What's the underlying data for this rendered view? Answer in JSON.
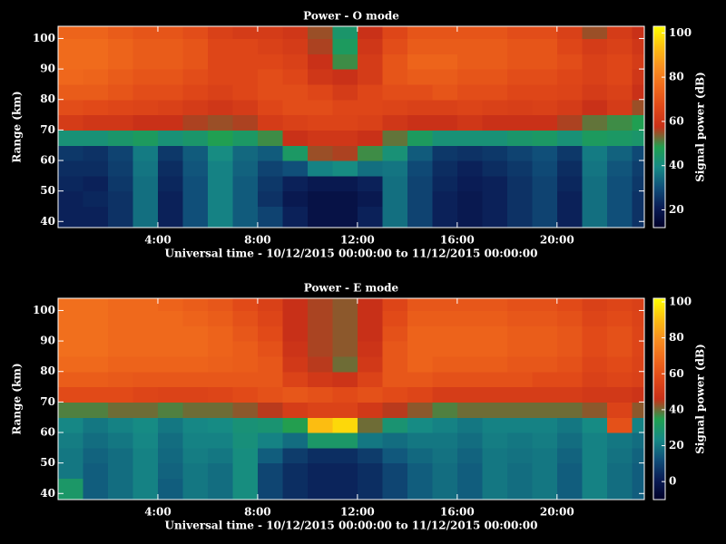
{
  "chart_data": [
    {
      "type": "heatmap",
      "title": "Power - O mode",
      "xlabel": "Universal time - 10/12/2015 00:00:00 to 11/12/2015 00:00:00",
      "ylabel": "Range (km)",
      "colorbar_label": "Signal power (dB)",
      "xlim": [
        0,
        23.5
      ],
      "ylim": [
        38,
        104
      ],
      "zlim": [
        12,
        103
      ],
      "xticks": [
        {
          "value": 4,
          "label": "4:00"
        },
        {
          "value": 8,
          "label": "8:00"
        },
        {
          "value": 12,
          "label": "12:00"
        },
        {
          "value": 16,
          "label": "16:00"
        },
        {
          "value": 20,
          "label": "20:00"
        }
      ],
      "yticks": [
        40,
        50,
        60,
        70,
        80,
        90,
        100
      ],
      "zticks": [
        20,
        40,
        60,
        80,
        100
      ],
      "colormap": [
        "#000028",
        "#0a1c55",
        "#10507a",
        "#168a86",
        "#20a050",
        "#c83018",
        "#e04818",
        "#f06a1c",
        "#f89020",
        "#fcc010",
        "#ffff00"
      ],
      "xbins": [
        0,
        1,
        2,
        3,
        4,
        5,
        6,
        7,
        8,
        9,
        10,
        11,
        12,
        13,
        14,
        15,
        16,
        17,
        18,
        19,
        20,
        21,
        22,
        23,
        23.5
      ],
      "ybins": [
        38,
        45,
        50,
        55,
        60,
        65,
        70,
        75,
        80,
        85,
        90,
        95,
        100,
        104
      ],
      "z": [
        [
          22,
          22,
          25,
          35,
          22,
          30,
          38,
          32,
          28,
          22,
          18,
          18,
          22,
          35,
          28,
          22,
          20,
          22,
          25,
          28,
          22,
          35,
          30,
          25
        ],
        [
          22,
          23,
          25,
          35,
          22,
          30,
          38,
          32,
          25,
          20,
          18,
          18,
          20,
          35,
          28,
          22,
          20,
          22,
          25,
          28,
          22,
          35,
          30,
          25
        ],
        [
          23,
          22,
          26,
          35,
          23,
          30,
          38,
          32,
          26,
          22,
          20,
          20,
          22,
          35,
          28,
          23,
          21,
          22,
          25,
          28,
          23,
          35,
          30,
          26
        ],
        [
          24,
          24,
          27,
          36,
          24,
          31,
          38,
          33,
          28,
          30,
          38,
          40,
          35,
          36,
          29,
          24,
          22,
          24,
          26,
          29,
          24,
          36,
          31,
          27
        ],
        [
          26,
          25,
          28,
          37,
          26,
          32,
          40,
          34,
          32,
          45,
          55,
          56,
          50,
          42,
          32,
          26,
          25,
          26,
          28,
          30,
          26,
          37,
          33,
          29
        ],
        [
          42,
          42,
          44,
          46,
          42,
          44,
          48,
          45,
          50,
          58,
          60,
          60,
          58,
          52,
          46,
          42,
          42,
          42,
          44,
          45,
          42,
          46,
          45,
          44
        ],
        [
          62,
          60,
          60,
          58,
          58,
          56,
          55,
          56,
          62,
          64,
          65,
          65,
          64,
          60,
          58,
          58,
          60,
          58,
          58,
          58,
          56,
          52,
          50,
          48
        ],
        [
          68,
          67,
          66,
          65,
          64,
          62,
          60,
          62,
          66,
          68,
          68,
          66,
          66,
          65,
          64,
          64,
          65,
          64,
          63,
          64,
          62,
          58,
          62,
          55
        ],
        [
          72,
          72,
          70,
          68,
          68,
          66,
          64,
          66,
          68,
          68,
          66,
          62,
          66,
          68,
          68,
          70,
          68,
          68,
          66,
          66,
          65,
          62,
          64,
          58
        ],
        [
          75,
          74,
          72,
          70,
          70,
          68,
          66,
          66,
          68,
          66,
          60,
          58,
          62,
          70,
          72,
          72,
          70,
          70,
          68,
          68,
          66,
          64,
          66,
          60
        ],
        [
          76,
          76,
          74,
          72,
          72,
          70,
          66,
          66,
          66,
          64,
          58,
          50,
          62,
          70,
          74,
          74,
          72,
          72,
          70,
          70,
          68,
          64,
          66,
          62
        ],
        [
          76,
          76,
          74,
          72,
          72,
          70,
          66,
          66,
          64,
          62,
          56,
          46,
          60,
          68,
          72,
          72,
          72,
          72,
          70,
          70,
          66,
          62,
          64,
          60
        ],
        [
          74,
          74,
          72,
          70,
          70,
          68,
          64,
          62,
          62,
          60,
          55,
          44,
          58,
          66,
          70,
          70,
          70,
          70,
          68,
          68,
          64,
          55,
          62,
          58
        ]
      ]
    },
    {
      "type": "heatmap",
      "title": "Power - E mode",
      "xlabel": "Universal time - 10/12/2015 00:00:00 to 11/12/2015 00:00:00",
      "ylabel": "Range (km)",
      "colorbar_label": "Signal power (dB)",
      "xlim": [
        0,
        23.5
      ],
      "ylim": [
        38,
        104
      ],
      "zlim": [
        -10,
        102
      ],
      "xticks": [
        {
          "value": 4,
          "label": "4:00"
        },
        {
          "value": 8,
          "label": "8:00"
        },
        {
          "value": 12,
          "label": "12:00"
        },
        {
          "value": 16,
          "label": "16:00"
        },
        {
          "value": 20,
          "label": "20:00"
        }
      ],
      "yticks": [
        40,
        50,
        60,
        70,
        80,
        90,
        100
      ],
      "zticks": [
        0,
        20,
        40,
        60,
        80,
        100
      ],
      "colormap": [
        "#000028",
        "#0a1c55",
        "#10507a",
        "#168a86",
        "#20a050",
        "#c83018",
        "#e04818",
        "#f06a1c",
        "#f89020",
        "#fcc010",
        "#ffff00"
      ],
      "xbins": [
        0,
        1,
        2,
        3,
        4,
        5,
        6,
        7,
        8,
        9,
        10,
        11,
        12,
        13,
        14,
        15,
        16,
        17,
        18,
        19,
        20,
        21,
        22,
        23,
        23.5
      ],
      "ybins": [
        38,
        45,
        50,
        55,
        60,
        65,
        70,
        75,
        80,
        85,
        90,
        95,
        100,
        104
      ],
      "z": [
        [
          30,
          15,
          18,
          22,
          15,
          20,
          18,
          25,
          10,
          5,
          3,
          3,
          5,
          10,
          15,
          18,
          15,
          20,
          18,
          20,
          15,
          22,
          18,
          15
        ],
        [
          20,
          15,
          18,
          22,
          16,
          20,
          18,
          25,
          10,
          5,
          3,
          3,
          5,
          10,
          15,
          18,
          15,
          20,
          18,
          20,
          15,
          22,
          18,
          15
        ],
        [
          20,
          16,
          18,
          22,
          17,
          21,
          20,
          25,
          15,
          8,
          5,
          5,
          8,
          14,
          17,
          19,
          16,
          20,
          19,
          20,
          16,
          22,
          19,
          16
        ],
        [
          21,
          18,
          20,
          23,
          18,
          22,
          22,
          26,
          22,
          18,
          30,
          30,
          20,
          18,
          20,
          20,
          18,
          21,
          20,
          21,
          18,
          22,
          20,
          18
        ],
        [
          23,
          20,
          22,
          24,
          20,
          23,
          24,
          27,
          28,
          35,
          90,
          95,
          40,
          28,
          24,
          22,
          20,
          22,
          22,
          22,
          20,
          24,
          60,
          22
        ],
        [
          38,
          38,
          40,
          40,
          38,
          40,
          40,
          42,
          45,
          52,
          55,
          55,
          50,
          45,
          42,
          38,
          40,
          40,
          40,
          40,
          40,
          42,
          55,
          42
        ],
        [
          58,
          58,
          58,
          56,
          55,
          55,
          56,
          58,
          60,
          62,
          60,
          58,
          60,
          58,
          56,
          52,
          52,
          52,
          52,
          52,
          52,
          50,
          50,
          48
        ],
        [
          64,
          64,
          63,
          62,
          62,
          62,
          62,
          62,
          62,
          55,
          50,
          48,
          55,
          62,
          62,
          60,
          60,
          60,
          60,
          58,
          58,
          54,
          56,
          54
        ],
        [
          68,
          68,
          66,
          66,
          66,
          66,
          65,
          64,
          62,
          50,
          45,
          40,
          50,
          62,
          66,
          64,
          64,
          64,
          62,
          62,
          60,
          56,
          58,
          55
        ],
        [
          70,
          70,
          68,
          68,
          68,
          68,
          66,
          64,
          60,
          48,
          44,
          42,
          48,
          62,
          66,
          66,
          66,
          66,
          64,
          64,
          62,
          58,
          60,
          56
        ],
        [
          70,
          70,
          68,
          68,
          68,
          68,
          66,
          62,
          58,
          46,
          44,
          42,
          46,
          60,
          66,
          66,
          66,
          66,
          64,
          64,
          62,
          58,
          60,
          56
        ],
        [
          70,
          70,
          68,
          68,
          68,
          66,
          64,
          60,
          56,
          46,
          44,
          42,
          46,
          58,
          64,
          64,
          64,
          64,
          62,
          62,
          60,
          56,
          58,
          55
        ],
        [
          70,
          70,
          68,
          68,
          66,
          64,
          62,
          58,
          54,
          46,
          44,
          42,
          46,
          56,
          62,
          62,
          62,
          62,
          60,
          60,
          58,
          54,
          56,
          54
        ]
      ]
    }
  ]
}
